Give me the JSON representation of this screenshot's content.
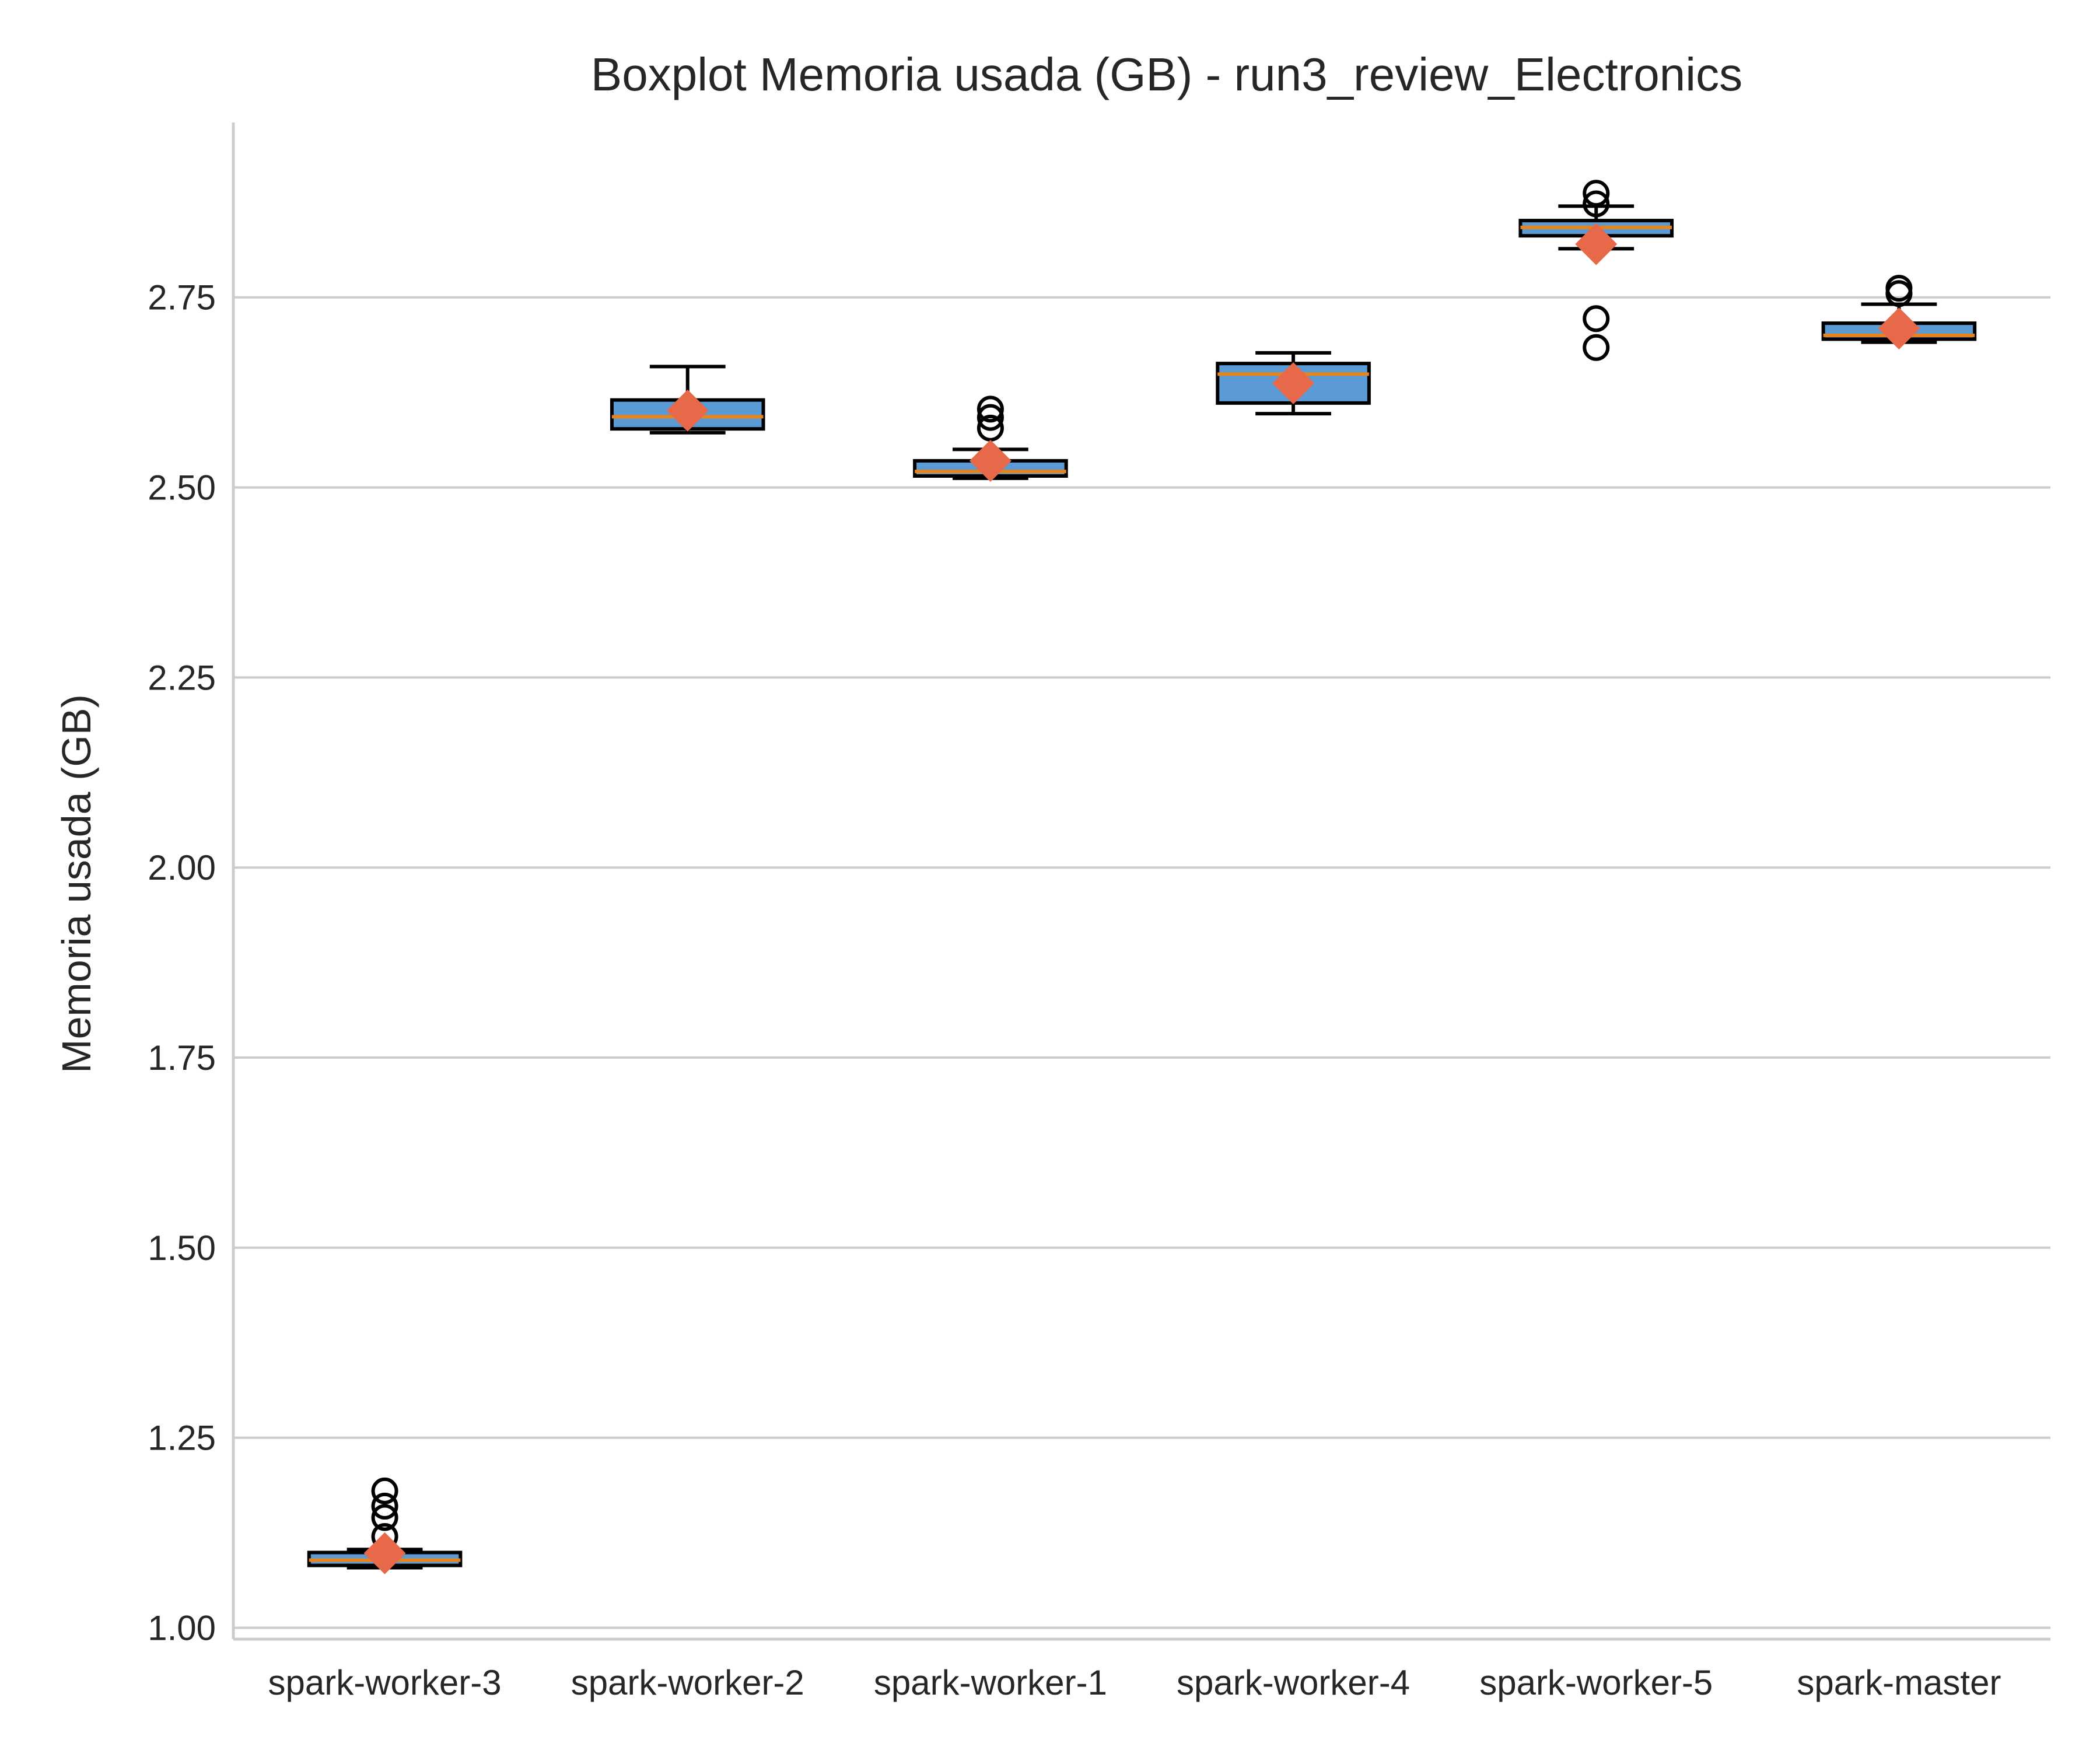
{
  "chart_data": {
    "type": "box",
    "title": "Boxplot Memoria usada (GB) - run3_review_Electronics",
    "xlabel": "",
    "ylabel": "Memoria usada (GB)",
    "ylim": [
      0.985,
      2.98
    ],
    "yticks": [
      "1.00",
      "1.25",
      "1.50",
      "1.75",
      "2.00",
      "2.25",
      "2.50",
      "2.75"
    ],
    "grid": "horizontal",
    "categories": [
      "spark-worker-3",
      "spark-worker-2",
      "spark-worker-1",
      "spark-worker-4",
      "spark-worker-5",
      "spark-master"
    ],
    "boxes": [
      {
        "whisker_low": 1.079,
        "q1": 1.082,
        "median": 1.089,
        "q3": 1.099,
        "whisker_high": 1.103,
        "mean": 1.098,
        "outliers": [
          1.12,
          1.145,
          1.16,
          1.18
        ]
      },
      {
        "whisker_low": 2.572,
        "q1": 2.577,
        "median": 2.593,
        "q3": 2.615,
        "whisker_high": 2.659,
        "mean": 2.601,
        "outliers": []
      },
      {
        "whisker_low": 2.512,
        "q1": 2.515,
        "median": 2.521,
        "q3": 2.535,
        "whisker_high": 2.55,
        "mean": 2.535,
        "outliers": [
          2.578,
          2.592,
          2.603
        ]
      },
      {
        "whisker_low": 2.597,
        "q1": 2.611,
        "median": 2.649,
        "q3": 2.663,
        "whisker_high": 2.677,
        "mean": 2.637,
        "outliers": []
      },
      {
        "whisker_low": 2.814,
        "q1": 2.831,
        "median": 2.842,
        "q3": 2.851,
        "whisker_high": 2.87,
        "mean": 2.82,
        "outliers": [
          2.684,
          2.722,
          2.873,
          2.887
        ]
      },
      {
        "whisker_low": 2.691,
        "q1": 2.695,
        "median": 2.7,
        "q3": 2.716,
        "whisker_high": 2.741,
        "mean": 2.709,
        "outliers": [
          2.755,
          2.762
        ]
      }
    ],
    "colors": {
      "box_fill": "#5b9bd5",
      "median": "#e8841a",
      "mean_marker": "#e8694a",
      "grid": "#cccccc",
      "spine": "#cccccc",
      "edge": "#000000"
    }
  }
}
